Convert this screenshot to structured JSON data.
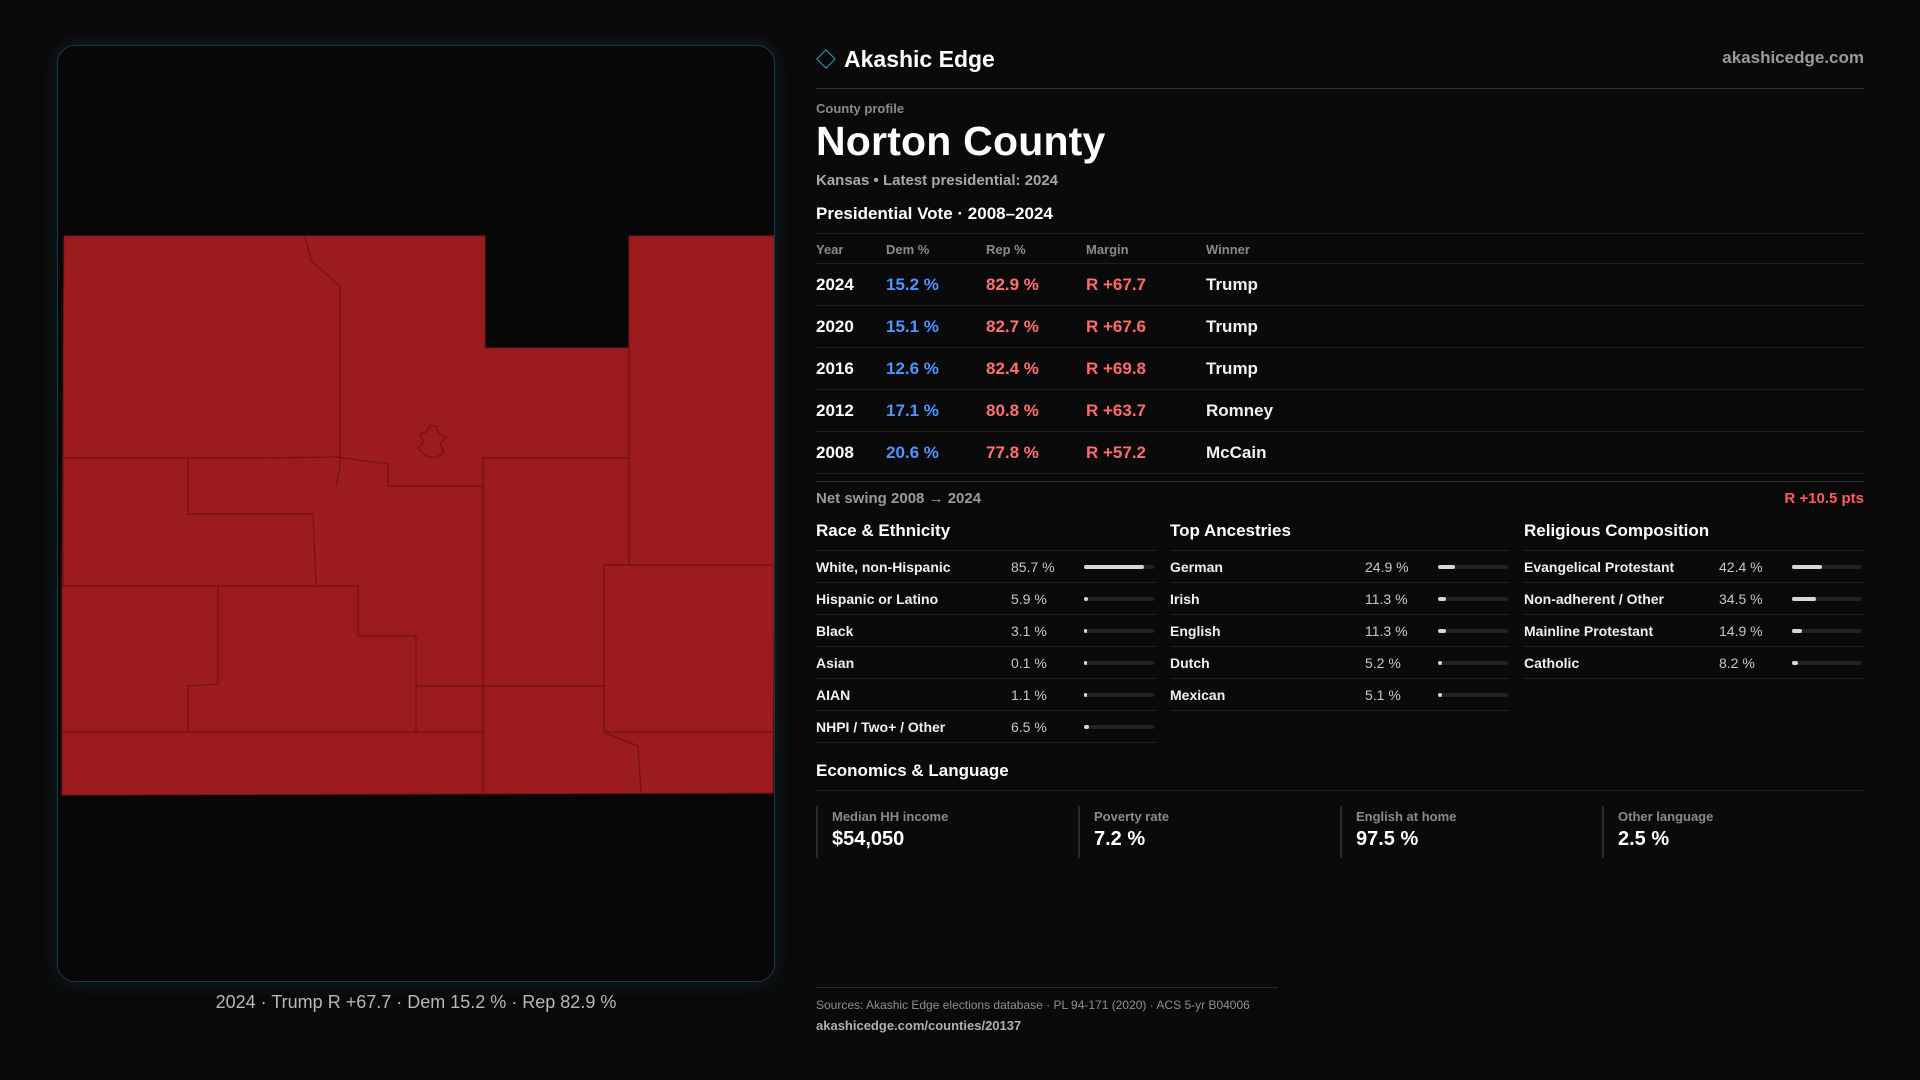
{
  "brand": {
    "name": "Akashic Edge",
    "domain": "akashicedge.com",
    "icon": "diamond-icon",
    "accent": "#2aa8bd"
  },
  "profile": {
    "kicker": "County profile",
    "county": "Norton County",
    "subline": "Kansas • Latest presidential: 2024"
  },
  "presidential": {
    "title": "Presidential Vote · 2008–2024",
    "headers": {
      "year": "Year",
      "dem": "Dem %",
      "rep": "Rep %",
      "margin": "Margin",
      "winner": "Winner"
    },
    "rows": [
      {
        "year": "2024",
        "dem": "15.2 %",
        "rep": "82.9 %",
        "margin": "R +67.7",
        "winner": "Trump"
      },
      {
        "year": "2020",
        "dem": "15.1 %",
        "rep": "82.7 %",
        "margin": "R +67.6",
        "winner": "Trump"
      },
      {
        "year": "2016",
        "dem": "12.6 %",
        "rep": "82.4 %",
        "margin": "R +69.8",
        "winner": "Trump"
      },
      {
        "year": "2012",
        "dem": "17.1 %",
        "rep": "80.8 %",
        "margin": "R +63.7",
        "winner": "Romney"
      },
      {
        "year": "2008",
        "dem": "20.6 %",
        "rep": "77.8 %",
        "margin": "R +57.2",
        "winner": "McCain"
      }
    ],
    "swing_label": "Net swing 2008 → 2024",
    "swing_value": "R +10.5 pts"
  },
  "race": {
    "title": "Race & Ethnicity",
    "rows": [
      {
        "label": "White, non-Hispanic",
        "value": "85.7 %",
        "pct": 85.7
      },
      {
        "label": "Hispanic or Latino",
        "value": "5.9 %",
        "pct": 5.9
      },
      {
        "label": "Black",
        "value": "3.1 %",
        "pct": 3.1
      },
      {
        "label": "Asian",
        "value": "0.1 %",
        "pct": 0.1
      },
      {
        "label": "AIAN",
        "value": "1.1 %",
        "pct": 1.1
      },
      {
        "label": "NHPI / Two+ / Other",
        "value": "6.5 %",
        "pct": 6.5
      }
    ]
  },
  "ancestry": {
    "title": "Top Ancestries",
    "rows": [
      {
        "label": "German",
        "value": "24.9 %",
        "pct": 24.9
      },
      {
        "label": "Irish",
        "value": "11.3 %",
        "pct": 11.3
      },
      {
        "label": "English",
        "value": "11.3 %",
        "pct": 11.3
      },
      {
        "label": "Dutch",
        "value": "5.2 %",
        "pct": 5.2
      },
      {
        "label": "Mexican",
        "value": "5.1 %",
        "pct": 5.1
      }
    ]
  },
  "religion": {
    "title": "Religious Composition",
    "rows": [
      {
        "label": "Evangelical Protestant",
        "value": "42.4 %",
        "pct": 42.4
      },
      {
        "label": "Non-adherent / Other",
        "value": "34.5 %",
        "pct": 34.5
      },
      {
        "label": "Mainline Protestant",
        "value": "14.9 %",
        "pct": 14.9
      },
      {
        "label": "Catholic",
        "value": "8.2 %",
        "pct": 8.2
      }
    ]
  },
  "economics": {
    "title": "Economics & Language",
    "cells": [
      {
        "label": "Median HH income",
        "value": "$54,050"
      },
      {
        "label": "Poverty rate",
        "value": "7.2 %"
      },
      {
        "label": "English at home",
        "value": "97.5 %"
      },
      {
        "label": "Other language",
        "value": "2.5 %"
      }
    ]
  },
  "map": {
    "caption": "2024 · Trump R +67.7 · Dem 15.2 % · Rep 82.9 %",
    "fill_color": "#9b1b1f",
    "border_color": "#6e1013"
  },
  "footer": {
    "sources": "Sources: Akashic Edge elections database · PL 94-171 (2020) · ACS 5-yr B04006",
    "url": "akashicedge.com/counties/20137"
  }
}
